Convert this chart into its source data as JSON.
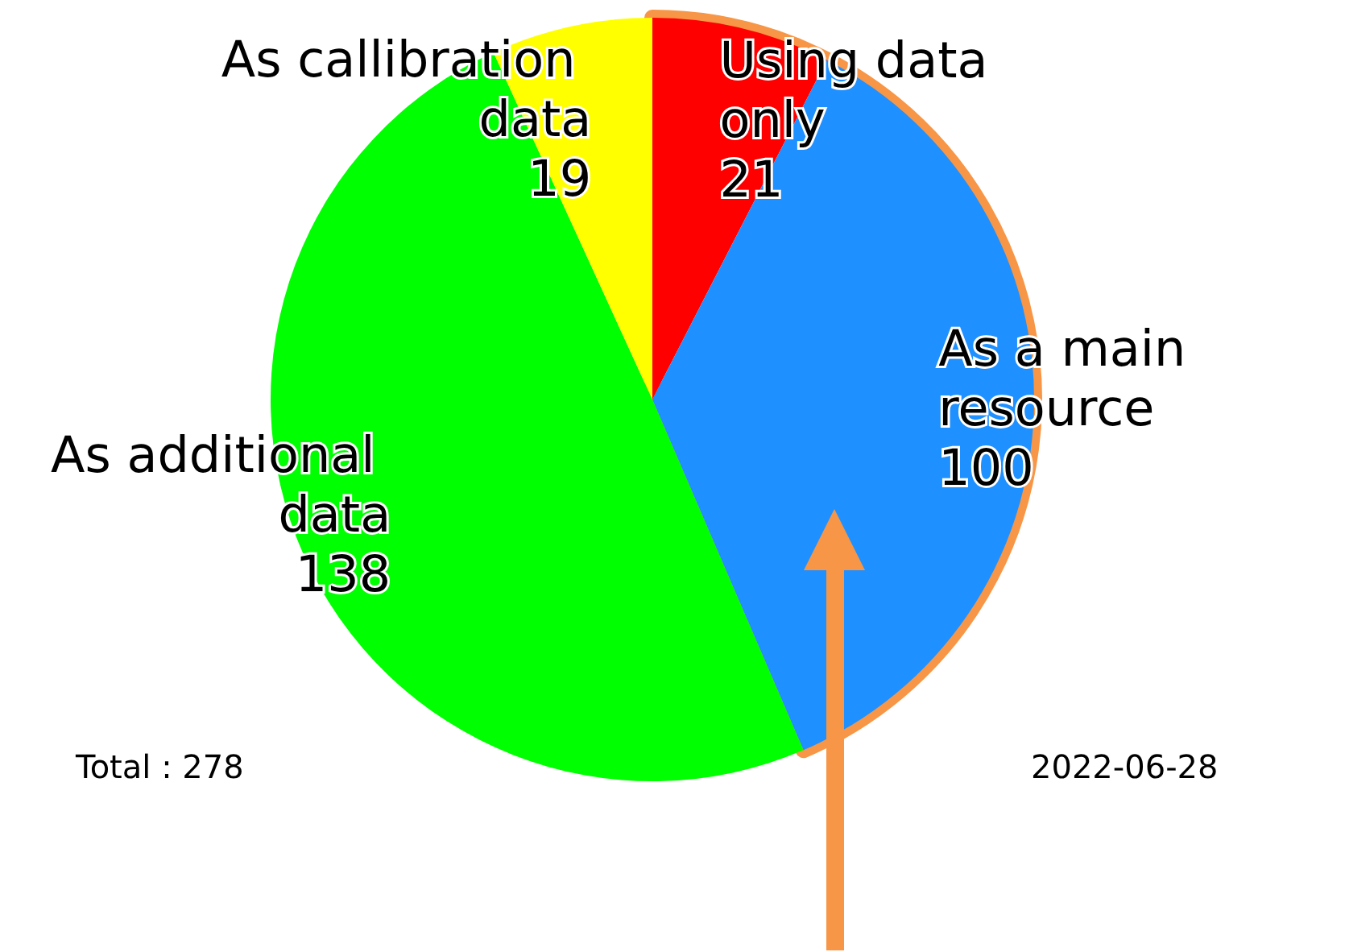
{
  "chart_data": {
    "type": "pie",
    "categories": [
      "Using data only",
      "As a main resource",
      "As additional data",
      "As callibration data"
    ],
    "values": [
      21,
      100,
      138,
      19
    ],
    "colors": [
      "#ff0000",
      "#1e90ff",
      "#00ff00",
      "#ffff00"
    ],
    "data_labels": true,
    "legend": false,
    "annotations": [
      "Total : 278",
      "2022-06-28"
    ]
  }
}
